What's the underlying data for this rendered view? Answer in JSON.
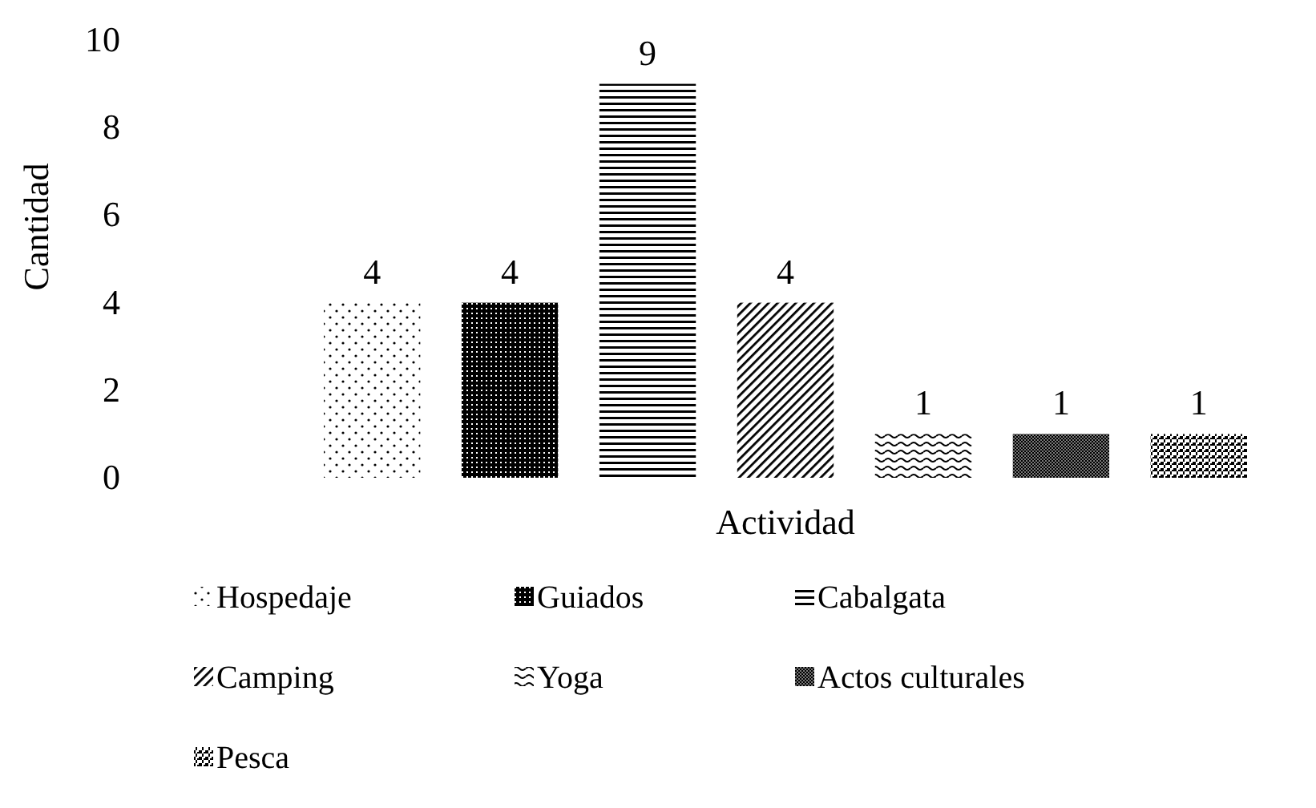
{
  "chart_data": {
    "type": "bar",
    "xlabel": "Actividad",
    "ylabel": "Cantidad",
    "categories": [
      null
    ],
    "ylim": [
      0,
      10
    ],
    "yticks": [
      0,
      2,
      4,
      6,
      8,
      10
    ],
    "grid": false,
    "legend": "bottom",
    "data_labels": true,
    "series": [
      {
        "name": "Hospedaje",
        "color": "#000000",
        "values": [
          4
        ]
      },
      {
        "name": "Guiados",
        "color": "#000000",
        "values": [
          4
        ]
      },
      {
        "name": "Cabalgata",
        "color": "#000000",
        "values": [
          9
        ]
      },
      {
        "name": "Camping",
        "color": "#000000",
        "values": [
          4
        ]
      },
      {
        "name": "Yoga",
        "color": "#000000",
        "values": [
          1
        ]
      },
      {
        "name": "Actos culturales",
        "color": "#000000",
        "values": [
          1
        ]
      },
      {
        "name": "Pesca",
        "color": "#000000",
        "values": [
          1
        ]
      }
    ]
  }
}
